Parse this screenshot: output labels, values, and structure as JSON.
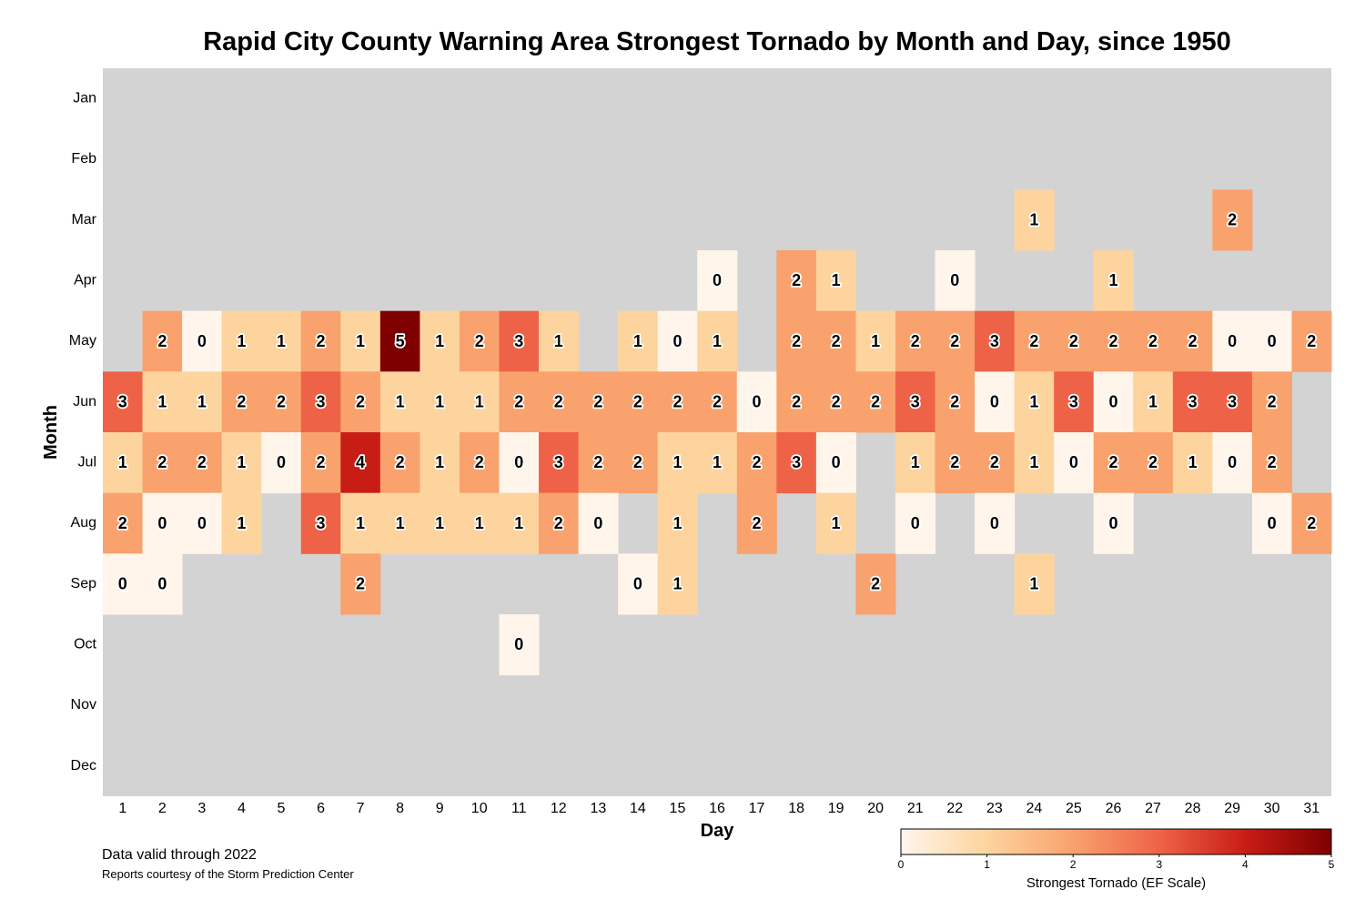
{
  "title": "Rapid City County Warning Area Strongest Tornado by Month and Day, since 1950",
  "footnotes": {
    "valid": "Data valid through 2022",
    "credit": "Reports courtesy of the Storm Prediction Center"
  },
  "colors": {
    "background": "#d3d3d3",
    "scale": [
      "#fff5eb",
      "#fdd49e",
      "#f9a26d",
      "#ee6347",
      "#c81d15",
      "#7f0000"
    ]
  },
  "chart_data": {
    "type": "heatmap",
    "title": "Rapid City County Warning Area Strongest Tornado by Month and Day, since 1950",
    "xlabel": "Day",
    "ylabel": "Month",
    "x_categories": [
      "1",
      "2",
      "3",
      "4",
      "5",
      "6",
      "7",
      "8",
      "9",
      "10",
      "11",
      "12",
      "13",
      "14",
      "15",
      "16",
      "17",
      "18",
      "19",
      "20",
      "21",
      "22",
      "23",
      "24",
      "25",
      "26",
      "27",
      "28",
      "29",
      "30",
      "31"
    ],
    "y_categories": [
      "Jan",
      "Feb",
      "Mar",
      "Apr",
      "May",
      "Jun",
      "Jul",
      "Aug",
      "Sep",
      "Oct",
      "Nov",
      "Dec"
    ],
    "colorbar": {
      "label": "Strongest Tornado (EF Scale)",
      "range": [
        0,
        5
      ],
      "ticks": [
        "0",
        "1",
        "2",
        "3",
        "4",
        "5"
      ],
      "placement": "bottom-right"
    },
    "values": [
      [
        null,
        null,
        null,
        null,
        null,
        null,
        null,
        null,
        null,
        null,
        null,
        null,
        null,
        null,
        null,
        null,
        null,
        null,
        null,
        null,
        null,
        null,
        null,
        null,
        null,
        null,
        null,
        null,
        null,
        null,
        null
      ],
      [
        null,
        null,
        null,
        null,
        null,
        null,
        null,
        null,
        null,
        null,
        null,
        null,
        null,
        null,
        null,
        null,
        null,
        null,
        null,
        null,
        null,
        null,
        null,
        null,
        null,
        null,
        null,
        null,
        null,
        null,
        null
      ],
      [
        null,
        null,
        null,
        null,
        null,
        null,
        null,
        null,
        null,
        null,
        null,
        null,
        null,
        null,
        null,
        null,
        null,
        null,
        null,
        null,
        null,
        null,
        null,
        1,
        null,
        null,
        null,
        null,
        2,
        null,
        null
      ],
      [
        null,
        null,
        null,
        null,
        null,
        null,
        null,
        null,
        null,
        null,
        null,
        null,
        null,
        null,
        null,
        0,
        null,
        2,
        1,
        null,
        null,
        0,
        null,
        null,
        null,
        1,
        null,
        null,
        null,
        null,
        null
      ],
      [
        null,
        2,
        0,
        1,
        1,
        2,
        1,
        5,
        1,
        2,
        3,
        1,
        null,
        1,
        0,
        1,
        null,
        2,
        2,
        1,
        2,
        2,
        3,
        2,
        2,
        2,
        2,
        2,
        0,
        0,
        2
      ],
      [
        3,
        1,
        1,
        2,
        2,
        3,
        2,
        1,
        1,
        1,
        2,
        2,
        2,
        2,
        2,
        2,
        0,
        2,
        2,
        2,
        3,
        2,
        0,
        1,
        3,
        0,
        1,
        3,
        3,
        2,
        null
      ],
      [
        1,
        2,
        2,
        1,
        0,
        2,
        4,
        2,
        1,
        2,
        0,
        3,
        2,
        2,
        1,
        1,
        2,
        3,
        0,
        null,
        1,
        2,
        2,
        1,
        0,
        2,
        2,
        1,
        0,
        2,
        null
      ],
      [
        2,
        0,
        0,
        1,
        null,
        3,
        1,
        1,
        1,
        1,
        1,
        2,
        0,
        null,
        1,
        null,
        2,
        null,
        1,
        null,
        0,
        null,
        0,
        null,
        null,
        0,
        null,
        null,
        null,
        0,
        2
      ],
      [
        0,
        0,
        null,
        null,
        null,
        null,
        2,
        null,
        null,
        null,
        null,
        null,
        null,
        0,
        1,
        null,
        null,
        null,
        null,
        2,
        null,
        null,
        null,
        1,
        null,
        null,
        null,
        null,
        null,
        null,
        null
      ],
      [
        null,
        null,
        null,
        null,
        null,
        null,
        null,
        null,
        null,
        null,
        0,
        null,
        null,
        null,
        null,
        null,
        null,
        null,
        null,
        null,
        null,
        null,
        null,
        null,
        null,
        null,
        null,
        null,
        null,
        null,
        null
      ],
      [
        null,
        null,
        null,
        null,
        null,
        null,
        null,
        null,
        null,
        null,
        null,
        null,
        null,
        null,
        null,
        null,
        null,
        null,
        null,
        null,
        null,
        null,
        null,
        null,
        null,
        null,
        null,
        null,
        null,
        null,
        null
      ],
      [
        null,
        null,
        null,
        null,
        null,
        null,
        null,
        null,
        null,
        null,
        null,
        null,
        null,
        null,
        null,
        null,
        null,
        null,
        null,
        null,
        null,
        null,
        null,
        null,
        null,
        null,
        null,
        null,
        null,
        null,
        null
      ]
    ]
  }
}
